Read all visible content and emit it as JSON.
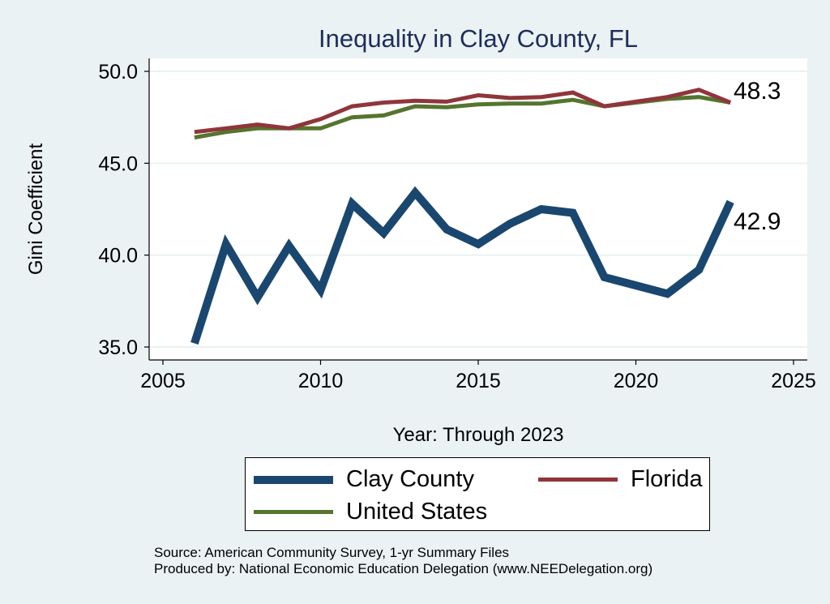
{
  "chart_data": {
    "type": "line",
    "title": "Inequality in Clay County, FL",
    "xlabel": "Year: Through 2023",
    "ylabel": "Gini Coefficient",
    "xlim": [
      2005,
      2025
    ],
    "ylim": [
      35,
      50
    ],
    "xticks": [
      "2005",
      "2010",
      "2015",
      "2020",
      "2025"
    ],
    "yticks": [
      "35.0",
      "40.0",
      "45.0",
      "50.0"
    ],
    "grid": true,
    "legend": "bottom",
    "series": [
      {
        "name": "Clay County",
        "color": "#1a476f",
        "x": [
          2006,
          2007,
          2008,
          2009,
          2010,
          2011,
          2012,
          2013,
          2014,
          2015,
          2016,
          2017,
          2018,
          2019,
          2021,
          2022,
          2023
        ],
        "y": [
          35.2,
          40.6,
          37.7,
          40.5,
          38.1,
          42.8,
          41.2,
          43.4,
          41.4,
          40.6,
          41.7,
          42.5,
          42.3,
          38.8,
          37.9,
          39.2,
          42.9
        ]
      },
      {
        "name": "Florida",
        "color": "#90353b",
        "x": [
          2006,
          2007,
          2008,
          2009,
          2010,
          2011,
          2012,
          2013,
          2014,
          2015,
          2016,
          2017,
          2018,
          2019,
          2021,
          2022,
          2023
        ],
        "y": [
          46.7,
          46.9,
          47.1,
          46.9,
          47.4,
          48.1,
          48.3,
          48.4,
          48.35,
          48.7,
          48.55,
          48.6,
          48.85,
          48.1,
          48.6,
          49.0,
          48.3
        ]
      },
      {
        "name": "United States",
        "color": "#55752f",
        "x": [
          2006,
          2007,
          2008,
          2009,
          2010,
          2011,
          2012,
          2013,
          2014,
          2015,
          2016,
          2017,
          2018,
          2019,
          2021,
          2022,
          2023
        ],
        "y": [
          46.4,
          46.7,
          46.9,
          46.9,
          46.9,
          47.5,
          47.6,
          48.1,
          48.05,
          48.2,
          48.25,
          48.25,
          48.45,
          48.1,
          48.5,
          48.6,
          48.3
        ]
      }
    ],
    "annotations": [
      "48.3",
      "42.9"
    ]
  },
  "notes": {
    "source": "Source: American Community Survey, 1-yr Summary Files",
    "produced": "Produced by: National Economic Education Delegation (www.NEEDelegation.org)"
  }
}
